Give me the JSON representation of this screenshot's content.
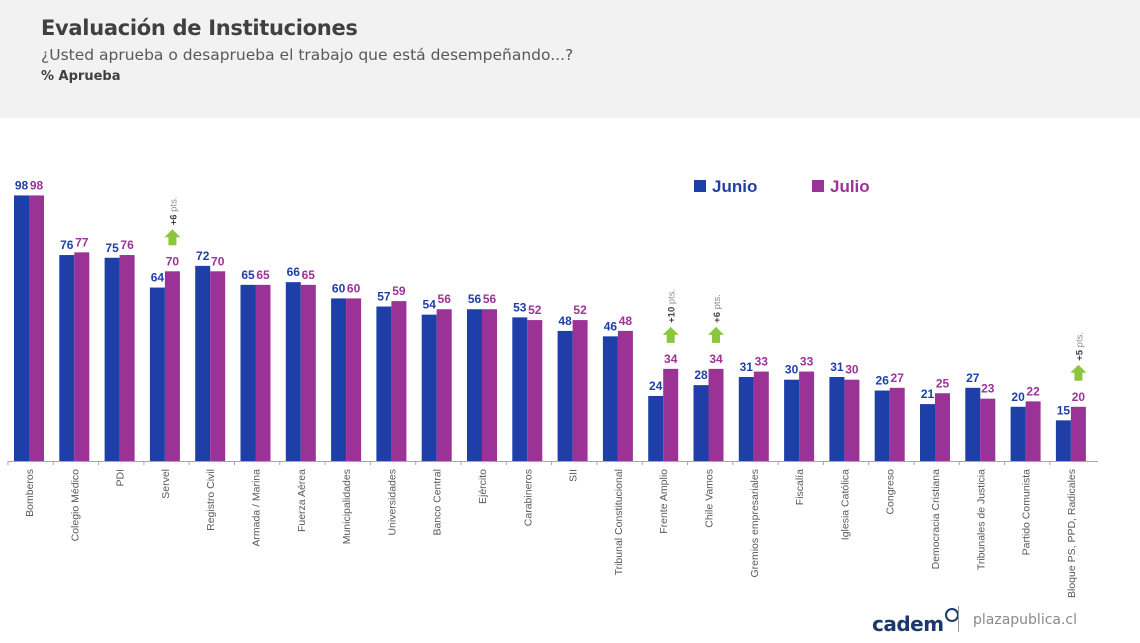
{
  "header": {
    "title": "Evaluación de Instituciones",
    "subtitle": "¿Usted aprueba o desaprueba el trabajo que está desempeñando...?",
    "measure": "% Aprueba"
  },
  "footer": {
    "logo": "cadem",
    "site": "plazapublica.cl"
  },
  "colors": {
    "junio": "#1f3fa8",
    "julio": "#9b3296",
    "arrow": "#8cc63f"
  },
  "chart_data": {
    "type": "bar",
    "title": "Evaluación de Instituciones",
    "ylim": [
      0,
      100
    ],
    "grid": false,
    "legend_position": "top-right",
    "categories": [
      "Bomberos",
      "Colegio Médico",
      "PDI",
      "Servel",
      "Registro Civil",
      "Armada / Marina",
      "Fuerza Aérea",
      "Municipalidades",
      "Universidades",
      "Banco Central",
      "Ejército",
      "Carabineros",
      "SII",
      "Tribunal Constitucional",
      "Frente Amplio",
      "Chile Vamos",
      "Gremios empresariales",
      "Fiscalía",
      "Iglesia Católica",
      "Congreso",
      "Democracia Cristiana",
      "Tribunales de Justicia",
      "Partido Comunista",
      "Bloque PS, PPD, Radicales"
    ],
    "series": [
      {
        "name": "Junio",
        "values": [
          98,
          76,
          75,
          64,
          72,
          65,
          66,
          60,
          57,
          54,
          56,
          53,
          48,
          46,
          24,
          28,
          31,
          30,
          31,
          26,
          21,
          27,
          20,
          15
        ]
      },
      {
        "name": "Julio",
        "values": [
          98,
          77,
          76,
          70,
          70,
          65,
          65,
          60,
          59,
          56,
          56,
          52,
          52,
          48,
          34,
          34,
          33,
          33,
          30,
          27,
          25,
          23,
          22,
          20
        ]
      }
    ],
    "annotations": [
      {
        "category": "Servel",
        "text": "+6 pts."
      },
      {
        "category": "Frente Amplio",
        "text": "+10 pts."
      },
      {
        "category": "Chile Vamos",
        "text": "+6 pts."
      },
      {
        "category": "Bloque PS, PPD, Radicales",
        "text": "+5 pts."
      }
    ]
  }
}
